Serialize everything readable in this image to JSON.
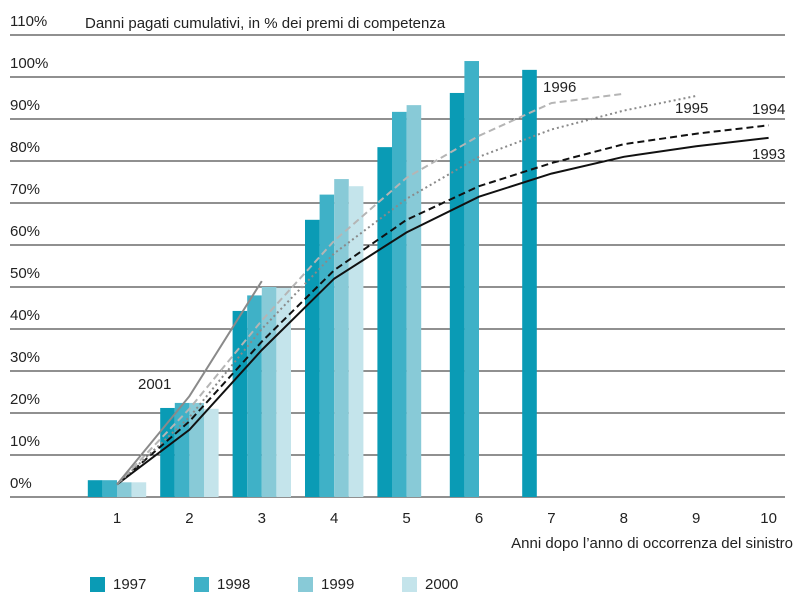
{
  "chart_data": {
    "type": "bar",
    "title": "Danni pagati cumulativi, in % dei premi di competenza",
    "x_label": "Anni dopo l’anno di occorrenza del sinistro",
    "categories": [
      "1",
      "2",
      "3",
      "4",
      "5",
      "6",
      "7",
      "8",
      "9",
      "10"
    ],
    "ylim": [
      0,
      110
    ],
    "yticks": [
      {
        "value": 0,
        "label": "0%"
      },
      {
        "value": 10,
        "label": "10%"
      },
      {
        "value": 20,
        "label": "20%"
      },
      {
        "value": 30,
        "label": "30%"
      },
      {
        "value": 40,
        "label": "40%"
      },
      {
        "value": 50,
        "label": "50%"
      },
      {
        "value": 60,
        "label": "60%"
      },
      {
        "value": 70,
        "label": "70%"
      },
      {
        "value": 80,
        "label": "80%"
      },
      {
        "value": 90,
        "label": "90%"
      },
      {
        "value": 100,
        "label": "100%"
      },
      {
        "value": 110,
        "label": "110%"
      }
    ],
    "grid": true,
    "legend": "bottom",
    "series": [
      {
        "name": "1997",
        "color": "#0a9bb5",
        "values": [
          4,
          21.2,
          44.3,
          66,
          83.3,
          96.2,
          101.7,
          null,
          null,
          null
        ]
      },
      {
        "name": "1998",
        "color": "#3fb1c7",
        "values": [
          4,
          22.4,
          48,
          72,
          91.7,
          103.8,
          null,
          null,
          null,
          null
        ]
      },
      {
        "name": "1999",
        "color": "#88cad7",
        "values": [
          3.5,
          22.4,
          50,
          75.7,
          93.3,
          null,
          null,
          null,
          null,
          null
        ]
      },
      {
        "name": "2000",
        "color": "#c4e4eb",
        "values": [
          3.5,
          21,
          49.8,
          74,
          null,
          null,
          null,
          null,
          null,
          null
        ]
      }
    ],
    "line_series": [
      {
        "name": "1993",
        "color": "#111111",
        "dash": "solid",
        "values": [
          3,
          16,
          35,
          52,
          63,
          71.5,
          77,
          81,
          83.5,
          85.5
        ]
      },
      {
        "name": "1994",
        "color": "#111111",
        "dash": "dashed",
        "values": [
          3,
          18,
          37,
          54,
          66,
          74,
          79.5,
          84,
          86.5,
          88.5
        ]
      },
      {
        "name": "1995",
        "color": "#8a8a8a",
        "dash": "dotted",
        "values": [
          3,
          19,
          40,
          58,
          71,
          81,
          87.5,
          92,
          95.5,
          null
        ]
      },
      {
        "name": "1996",
        "color": "#b5b5b5",
        "dash": "dashed",
        "values": [
          3,
          21,
          42,
          61,
          76,
          86,
          93.8,
          96,
          null,
          null
        ]
      },
      {
        "name": "2001",
        "color": "#8a8a8a",
        "dash": "solid",
        "values": [
          3,
          24,
          51.4,
          null,
          null,
          null,
          null,
          null,
          null,
          null
        ]
      }
    ]
  }
}
